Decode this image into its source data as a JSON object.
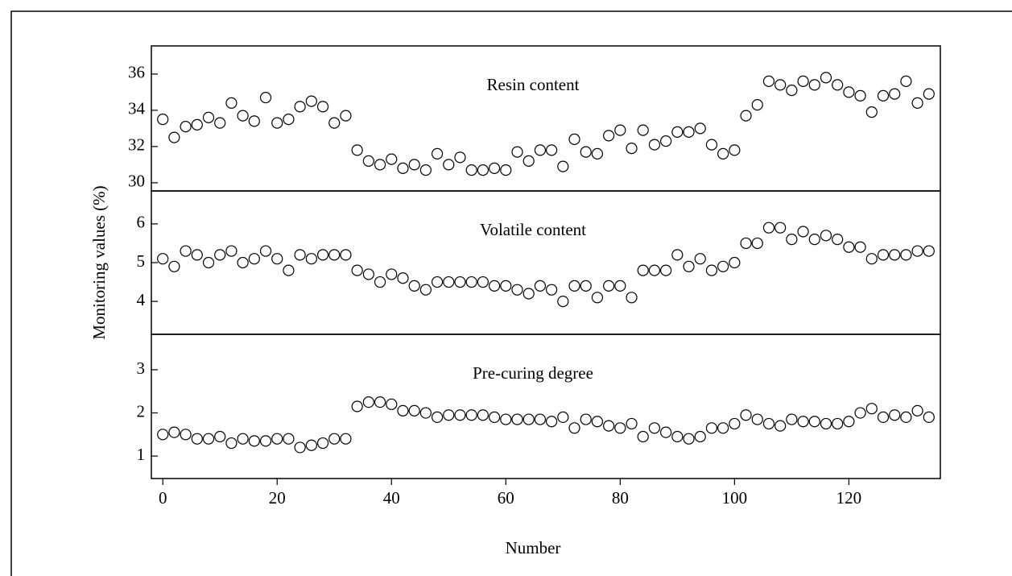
{
  "chart_data": [
    {
      "type": "scatter",
      "title": "Resin content",
      "x": [
        0,
        2,
        4,
        6,
        8,
        10,
        12,
        14,
        16,
        18,
        20,
        22,
        24,
        26,
        28,
        30,
        32,
        34,
        36,
        38,
        40,
        42,
        44,
        46,
        48,
        50,
        52,
        54,
        56,
        58,
        60,
        62,
        64,
        66,
        68,
        70,
        72,
        74,
        76,
        78,
        80,
        82,
        84,
        86,
        88,
        90,
        92,
        94,
        96,
        98,
        100,
        102,
        104,
        106,
        108,
        110,
        112,
        114,
        116,
        118,
        120,
        122,
        124,
        126,
        128,
        130,
        132,
        134
      ],
      "values": [
        33.5,
        32.5,
        33.1,
        33.2,
        33.6,
        33.3,
        34.4,
        33.7,
        33.4,
        34.7,
        33.3,
        33.5,
        34.2,
        34.5,
        34.2,
        33.3,
        33.7,
        31.8,
        31.2,
        31.0,
        31.3,
        30.8,
        31.0,
        30.7,
        31.6,
        31.0,
        31.4,
        30.7,
        30.7,
        30.8,
        30.7,
        31.7,
        31.2,
        31.8,
        31.8,
        30.9,
        32.4,
        31.7,
        31.6,
        32.6,
        32.9,
        31.9,
        32.9,
        32.1,
        32.3,
        32.8,
        32.8,
        33.0,
        32.1,
        31.6,
        31.8,
        33.7,
        34.3,
        35.6,
        35.4,
        35.1,
        35.6,
        35.4,
        35.8,
        35.4,
        35.0,
        34.8,
        33.9,
        34.8,
        34.9,
        35.6,
        34.4,
        34.9
      ],
      "ylim": [
        29.55,
        37.55
      ],
      "yticks": [
        30,
        32,
        34,
        36
      ]
    },
    {
      "type": "scatter",
      "title": "Volatile content",
      "ylabel": "Monitoring values (%)",
      "x": [
        0,
        2,
        4,
        6,
        8,
        10,
        12,
        14,
        16,
        18,
        20,
        22,
        24,
        26,
        28,
        30,
        32,
        34,
        36,
        38,
        40,
        42,
        44,
        46,
        48,
        50,
        52,
        54,
        56,
        58,
        60,
        62,
        64,
        66,
        68,
        70,
        72,
        74,
        76,
        78,
        80,
        82,
        84,
        86,
        88,
        90,
        92,
        94,
        96,
        98,
        100,
        102,
        104,
        106,
        108,
        110,
        112,
        114,
        116,
        118,
        120,
        122,
        124,
        126,
        128,
        130,
        132,
        134
      ],
      "values": [
        5.1,
        4.9,
        5.3,
        5.2,
        5.0,
        5.2,
        5.3,
        5.0,
        5.1,
        5.3,
        5.1,
        4.8,
        5.2,
        5.1,
        5.2,
        5.2,
        5.2,
        4.8,
        4.7,
        4.5,
        4.7,
        4.6,
        4.4,
        4.3,
        4.5,
        4.5,
        4.5,
        4.5,
        4.5,
        4.4,
        4.4,
        4.3,
        4.2,
        4.4,
        4.3,
        4.0,
        4.4,
        4.4,
        4.1,
        4.4,
        4.4,
        4.1,
        4.8,
        4.8,
        4.8,
        5.2,
        4.9,
        5.1,
        4.8,
        4.9,
        5.0,
        5.5,
        5.5,
        5.9,
        5.9,
        5.6,
        5.8,
        5.6,
        5.7,
        5.6,
        5.4,
        5.4,
        5.1,
        5.2,
        5.2,
        5.2,
        5.3,
        5.3
      ],
      "ylim": [
        3.15,
        6.85
      ],
      "yticks": [
        4,
        5,
        6
      ]
    },
    {
      "type": "scatter",
      "title": "Pre-curing degree",
      "xlabel": "Number",
      "x": [
        0,
        2,
        4,
        6,
        8,
        10,
        12,
        14,
        16,
        18,
        20,
        22,
        24,
        26,
        28,
        30,
        32,
        34,
        36,
        38,
        40,
        42,
        44,
        46,
        48,
        50,
        52,
        54,
        56,
        58,
        60,
        62,
        64,
        66,
        68,
        70,
        72,
        74,
        76,
        78,
        80,
        82,
        84,
        86,
        88,
        90,
        92,
        94,
        96,
        98,
        100,
        102,
        104,
        106,
        108,
        110,
        112,
        114,
        116,
        118,
        120,
        122,
        124,
        126,
        128,
        130,
        132,
        134
      ],
      "values": [
        1.5,
        1.55,
        1.5,
        1.4,
        1.4,
        1.45,
        1.3,
        1.4,
        1.35,
        1.35,
        1.4,
        1.4,
        1.2,
        1.25,
        1.3,
        1.4,
        1.4,
        2.15,
        2.25,
        2.25,
        2.2,
        2.05,
        2.05,
        2.0,
        1.9,
        1.95,
        1.95,
        1.95,
        1.95,
        1.9,
        1.85,
        1.85,
        1.85,
        1.85,
        1.8,
        1.9,
        1.65,
        1.85,
        1.8,
        1.7,
        1.65,
        1.75,
        1.45,
        1.65,
        1.55,
        1.45,
        1.4,
        1.45,
        1.65,
        1.65,
        1.75,
        1.95,
        1.85,
        1.75,
        1.7,
        1.85,
        1.8,
        1.8,
        1.75,
        1.75,
        1.8,
        2.0,
        2.1,
        1.9,
        1.95,
        1.9,
        2.05,
        1.9
      ],
      "ylim": [
        0.48,
        3.82
      ],
      "yticks": [
        1,
        2,
        3
      ],
      "xlim": [
        -2,
        136
      ],
      "xticks": [
        0,
        20,
        40,
        60,
        80,
        100,
        120
      ]
    }
  ]
}
